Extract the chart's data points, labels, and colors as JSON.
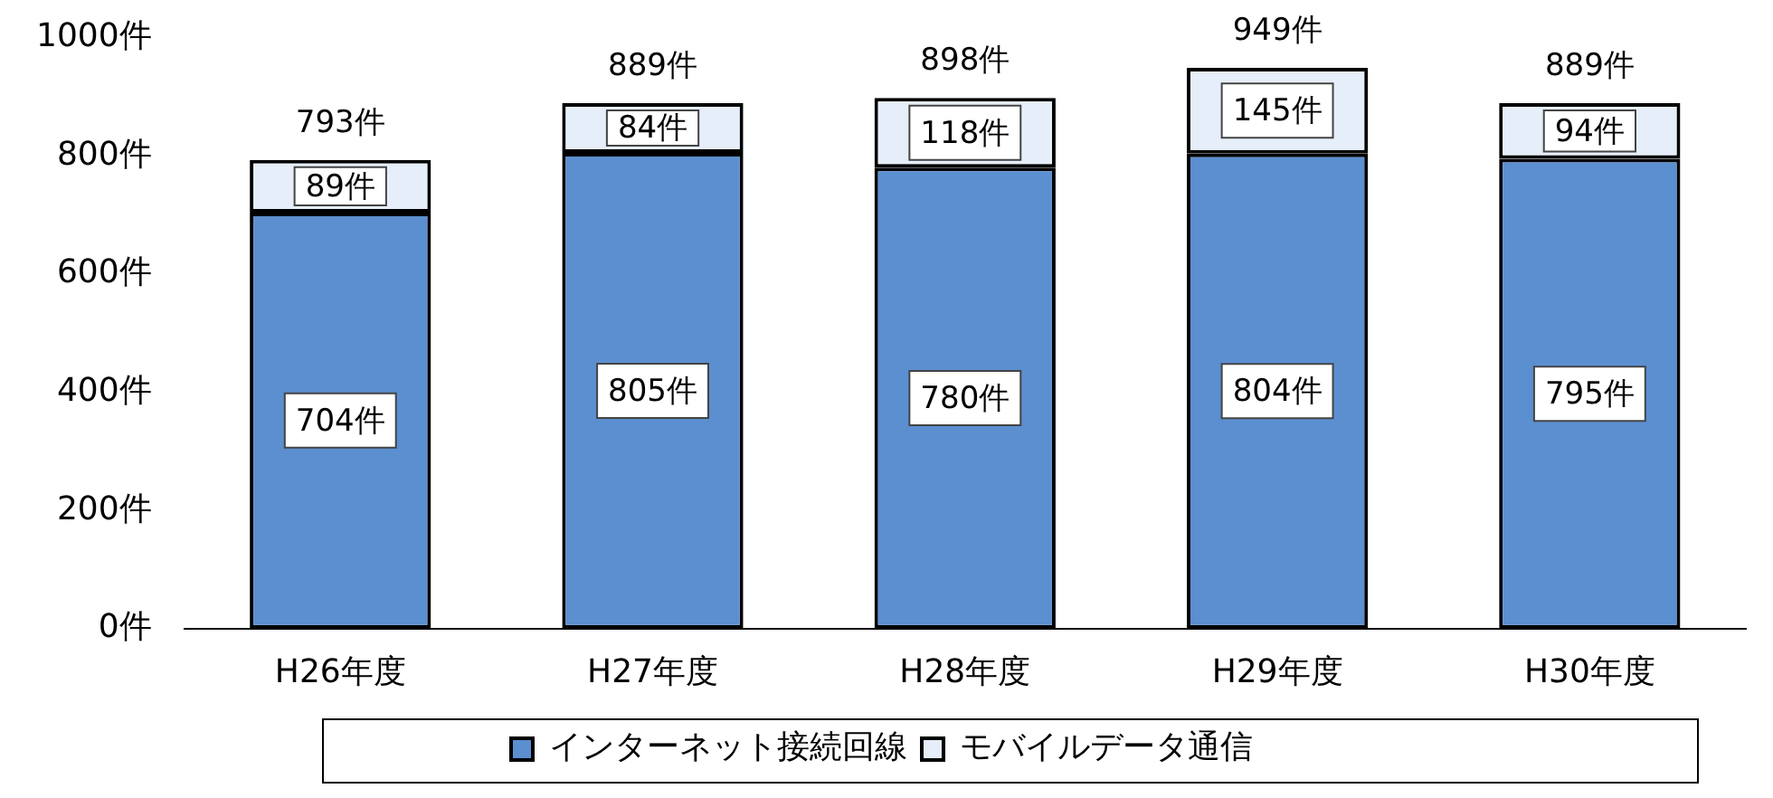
{
  "chart_data": {
    "type": "bar",
    "stacked": true,
    "categories": [
      "H26年度",
      "H27年度",
      "H28年度",
      "H29年度",
      "H30年度"
    ],
    "series": [
      {
        "name": "インターネット接続回線",
        "color": "#5b8fd0",
        "values": [
          704,
          805,
          780,
          804,
          795
        ],
        "value_labels": [
          "704件",
          "805件",
          "780件",
          "804件",
          "795件"
        ]
      },
      {
        "name": "モバイルデータ通信",
        "color": "#e6eef9",
        "values": [
          89,
          84,
          118,
          145,
          94
        ],
        "value_labels": [
          "89件",
          "84件",
          "118件",
          "145件",
          "94件"
        ]
      }
    ],
    "totals": [
      "793件",
      "889件",
      "898件",
      "949件",
      "889件"
    ],
    "ylim": [
      0,
      1000
    ],
    "yticks": [
      {
        "value": 0,
        "label": "0件"
      },
      {
        "value": 200,
        "label": "200件"
      },
      {
        "value": 400,
        "label": "400件"
      },
      {
        "value": 600,
        "label": "600件"
      },
      {
        "value": 800,
        "label": "800件"
      },
      {
        "value": 1000,
        "label": "1000件"
      }
    ],
    "grid": false,
    "legend": "bottom"
  }
}
